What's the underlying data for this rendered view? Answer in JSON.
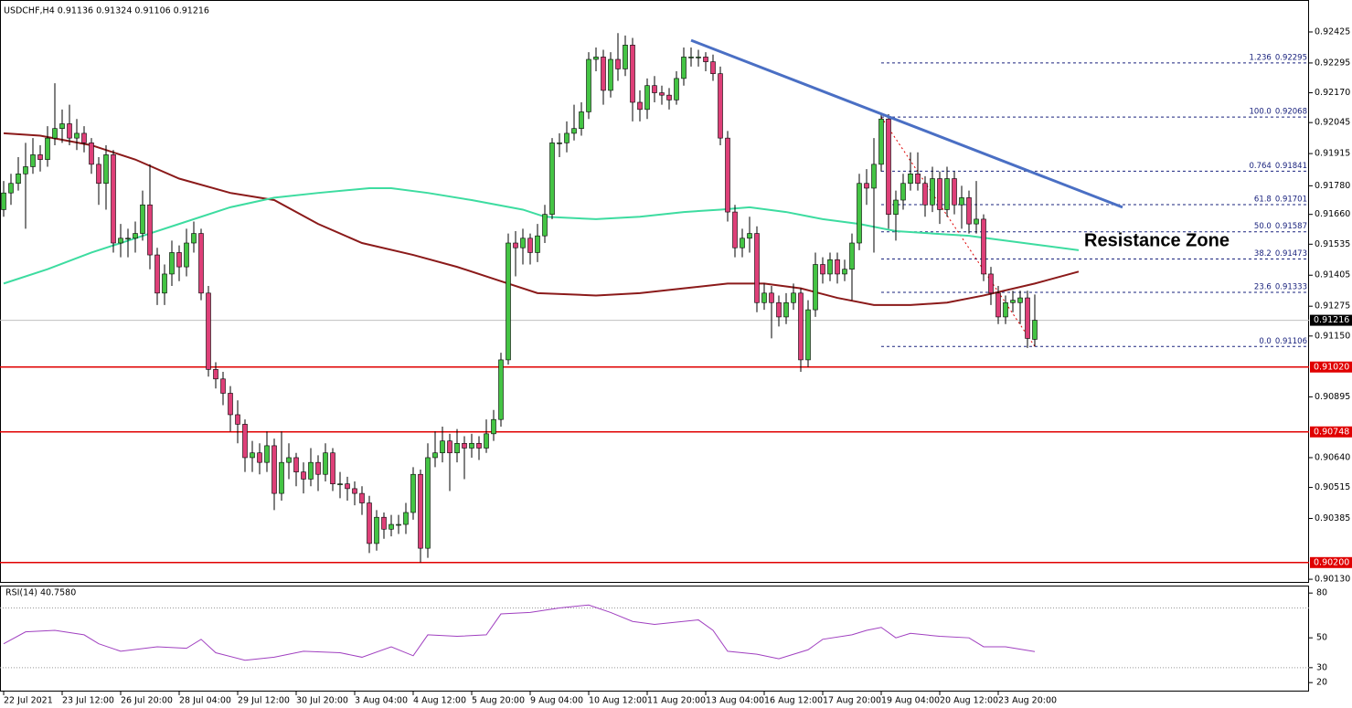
{
  "chart_data": {
    "type": "candlestick",
    "title": "USDCHF,H4  0.91136 0.91324 0.91106 0.91216",
    "up_color": "#44c444",
    "down_color": "#de3f78",
    "xlim": [
      -0.5,
      178.5
    ],
    "ylim": [
      0.90115,
      0.92559
    ],
    "yticks": [
      0.92425,
      0.92295,
      {
        "value": 0.9217,
        "label": "0.92170"
      },
      0.92045,
      0.91915,
      {
        "value": 0.9178,
        "label": "0.91780"
      },
      {
        "value": 0.9166,
        "label": "0.91660"
      },
      0.91535,
      0.91405,
      0.91275,
      {
        "value": 0.9115,
        "label": "0.91150"
      },
      0.90895,
      {
        "value": 0.9064,
        "label": "0.90640"
      },
      0.90515,
      0.90385,
      {
        "value": 0.9013,
        "label": "0.90130"
      }
    ],
    "xticks": [
      {
        "value": 0,
        "label": "22 Jul 2021"
      },
      {
        "value": 8,
        "label": "23 Jul 12:00"
      },
      {
        "value": 16,
        "label": "26 Jul 20:00"
      },
      {
        "value": 24,
        "label": "28 Jul 04:00"
      },
      {
        "value": 32,
        "label": "29 Jul 12:00"
      },
      {
        "value": 40,
        "label": "30 Jul 20:00"
      },
      {
        "value": 48,
        "label": "3 Aug 04:00"
      },
      {
        "value": 56,
        "label": "4 Aug 12:00"
      },
      {
        "value": 64,
        "label": "5 Aug 20:00"
      },
      {
        "value": 72,
        "label": "9 Aug 04:00"
      },
      {
        "value": 80,
        "label": "10 Aug 12:00"
      },
      {
        "value": 88,
        "label": "11 Aug 20:00"
      },
      {
        "value": 96,
        "label": "13 Aug 04:00"
      },
      {
        "value": 104,
        "label": "16 Aug 12:00"
      },
      {
        "value": 112,
        "label": "17 Aug 20:00"
      },
      {
        "value": 120,
        "label": "19 Aug 04:00"
      },
      {
        "value": 128,
        "label": "20 Aug 12:00"
      },
      {
        "value": 136,
        "label": "23 Aug 20:00"
      }
    ],
    "ohlc": [
      [
        0.9168,
        0.918,
        0.9165,
        0.9175
      ],
      [
        0.9175,
        0.9183,
        0.917,
        0.9179
      ],
      [
        0.9179,
        0.919,
        0.9176,
        0.9183
      ],
      [
        0.9183,
        0.9196,
        0.916,
        0.9186
      ],
      [
        0.9186,
        0.9198,
        0.9183,
        0.9191
      ],
      [
        0.9191,
        0.9195,
        0.9184,
        0.9189
      ],
      [
        0.9189,
        0.9203,
        0.9186,
        0.9198
      ],
      [
        0.9198,
        0.9221,
        0.9195,
        0.9202
      ],
      [
        0.9202,
        0.921,
        0.9196,
        0.9204
      ],
      [
        0.9204,
        0.9212,
        0.9195,
        0.9198
      ],
      [
        0.9198,
        0.9206,
        0.9193,
        0.92
      ],
      [
        0.92,
        0.9203,
        0.9192,
        0.9196
      ],
      [
        0.9196,
        0.9198,
        0.9183,
        0.9187
      ],
      [
        0.9187,
        0.919,
        0.917,
        0.9179
      ],
      [
        0.9179,
        0.9195,
        0.9168,
        0.9191
      ],
      [
        0.9191,
        0.9193,
        0.915,
        0.9154
      ],
      [
        0.9154,
        0.9162,
        0.9148,
        0.9156
      ],
      [
        0.9156,
        0.916,
        0.9148,
        0.9156
      ],
      [
        0.9156,
        0.9163,
        0.915,
        0.9158
      ],
      [
        0.9158,
        0.9176,
        0.9155,
        0.917
      ],
      [
        0.917,
        0.9187,
        0.9143,
        0.9149
      ],
      [
        0.9149,
        0.9152,
        0.9128,
        0.9133
      ],
      [
        0.9133,
        0.9145,
        0.9128,
        0.9141
      ],
      [
        0.9141,
        0.9155,
        0.9136,
        0.915
      ],
      [
        0.915,
        0.9153,
        0.9138,
        0.9144
      ],
      [
        0.9144,
        0.916,
        0.914,
        0.9154
      ],
      [
        0.9154,
        0.9163,
        0.915,
        0.9158
      ],
      [
        0.9158,
        0.916,
        0.913,
        0.9133
      ],
      [
        0.9133,
        0.9136,
        0.9098,
        0.9101
      ],
      [
        0.9101,
        0.9104,
        0.9093,
        0.9097
      ],
      [
        0.9097,
        0.91,
        0.9086,
        0.9091
      ],
      [
        0.9091,
        0.9094,
        0.9075,
        0.9082
      ],
      [
        0.9082,
        0.9088,
        0.907,
        0.9078
      ],
      [
        0.9078,
        0.908,
        0.9058,
        0.9064
      ],
      [
        0.9064,
        0.9071,
        0.9058,
        0.9066
      ],
      [
        0.9066,
        0.907,
        0.9057,
        0.9062
      ],
      [
        0.9062,
        0.9075,
        0.9058,
        0.9069
      ],
      [
        0.9069,
        0.9072,
        0.9042,
        0.9049
      ],
      [
        0.9049,
        0.9075,
        0.9046,
        0.9062
      ],
      [
        0.9062,
        0.907,
        0.9055,
        0.9064
      ],
      [
        0.9064,
        0.9066,
        0.9052,
        0.9058
      ],
      [
        0.9058,
        0.9062,
        0.9049,
        0.9055
      ],
      [
        0.9055,
        0.9068,
        0.9052,
        0.9062
      ],
      [
        0.9062,
        0.9065,
        0.905,
        0.9057
      ],
      [
        0.9057,
        0.907,
        0.9054,
        0.9066
      ],
      [
        0.9066,
        0.9068,
        0.905,
        0.9053
      ],
      [
        0.9053,
        0.9058,
        0.9047,
        0.9053
      ],
      [
        0.9053,
        0.9056,
        0.9046,
        0.9051
      ],
      [
        0.9051,
        0.9054,
        0.9044,
        0.9049
      ],
      [
        0.9049,
        0.9052,
        0.904,
        0.9045
      ],
      [
        0.9045,
        0.9048,
        0.9024,
        0.9028
      ],
      [
        0.9028,
        0.9042,
        0.9025,
        0.9039
      ],
      [
        0.9039,
        0.9041,
        0.903,
        0.9034
      ],
      [
        0.9034,
        0.904,
        0.9031,
        0.9036
      ],
      [
        0.9036,
        0.904,
        0.9032,
        0.9036
      ],
      [
        0.9036,
        0.9045,
        0.9032,
        0.9041
      ],
      [
        0.9041,
        0.906,
        0.9038,
        0.9057
      ],
      [
        0.9057,
        0.9059,
        0.902,
        0.9026
      ],
      [
        0.9026,
        0.907,
        0.9022,
        0.9064
      ],
      [
        0.9064,
        0.9075,
        0.906,
        0.9066
      ],
      [
        0.9066,
        0.9077,
        0.9062,
        0.9071
      ],
      [
        0.9071,
        0.9074,
        0.905,
        0.9066
      ],
      [
        0.9066,
        0.9076,
        0.9062,
        0.907
      ],
      [
        0.907,
        0.9073,
        0.9055,
        0.9068
      ],
      [
        0.9068,
        0.9074,
        0.9064,
        0.907
      ],
      [
        0.907,
        0.9073,
        0.9063,
        0.9068
      ],
      [
        0.9068,
        0.908,
        0.9066,
        0.9074
      ],
      [
        0.9074,
        0.9084,
        0.9071,
        0.908
      ],
      [
        0.908,
        0.9108,
        0.9077,
        0.9105
      ],
      [
        0.9105,
        0.9158,
        0.9103,
        0.9154
      ],
      [
        0.9154,
        0.9159,
        0.914,
        0.9152
      ],
      [
        0.9152,
        0.916,
        0.9145,
        0.9156
      ],
      [
        0.9156,
        0.9158,
        0.9145,
        0.915
      ],
      [
        0.915,
        0.9162,
        0.9146,
        0.9157
      ],
      [
        0.9157,
        0.917,
        0.9154,
        0.9166
      ],
      [
        0.9166,
        0.9198,
        0.9164,
        0.9196
      ],
      [
        0.9196,
        0.92,
        0.919,
        0.9196
      ],
      [
        0.9196,
        0.9205,
        0.9192,
        0.92
      ],
      [
        0.92,
        0.9212,
        0.9197,
        0.9202
      ],
      [
        0.9202,
        0.9213,
        0.9199,
        0.9209
      ],
      [
        0.9209,
        0.9234,
        0.9206,
        0.9231
      ],
      [
        0.9231,
        0.9236,
        0.9226,
        0.9232
      ],
      [
        0.9232,
        0.9235,
        0.9212,
        0.9218
      ],
      [
        0.9218,
        0.9234,
        0.9215,
        0.9231
      ],
      [
        0.9231,
        0.9242,
        0.9222,
        0.9227
      ],
      [
        0.9227,
        0.9241,
        0.9224,
        0.9237
      ],
      [
        0.9237,
        0.924,
        0.9205,
        0.9213
      ],
      [
        0.9213,
        0.9218,
        0.9205,
        0.921
      ],
      [
        0.921,
        0.9223,
        0.9206,
        0.922
      ],
      [
        0.922,
        0.9224,
        0.9213,
        0.9217
      ],
      [
        0.9217,
        0.922,
        0.9212,
        0.9216
      ],
      [
        0.9216,
        0.9219,
        0.921,
        0.9214
      ],
      [
        0.9214,
        0.9226,
        0.9212,
        0.9223
      ],
      [
        0.9223,
        0.9236,
        0.922,
        0.9232
      ],
      [
        0.9232,
        0.9236,
        0.9228,
        0.9232
      ],
      [
        0.9232,
        0.9235,
        0.9228,
        0.9232
      ],
      [
        0.9232,
        0.9234,
        0.9226,
        0.923
      ],
      [
        0.923,
        0.9233,
        0.9222,
        0.9225
      ],
      [
        0.9225,
        0.9228,
        0.9195,
        0.9198
      ],
      [
        0.9198,
        0.9201,
        0.9163,
        0.9167
      ],
      [
        0.9167,
        0.917,
        0.9148,
        0.9152
      ],
      [
        0.9152,
        0.916,
        0.9148,
        0.9156
      ],
      [
        0.9156,
        0.9165,
        0.915,
        0.9158
      ],
      [
        0.9158,
        0.9161,
        0.9125,
        0.9129
      ],
      [
        0.9129,
        0.9137,
        0.9126,
        0.9133
      ],
      [
        0.9133,
        0.9136,
        0.9114,
        0.9129
      ],
      [
        0.9129,
        0.9132,
        0.9119,
        0.9123
      ],
      [
        0.9123,
        0.9133,
        0.912,
        0.9129
      ],
      [
        0.9129,
        0.9137,
        0.9126,
        0.9133
      ],
      [
        0.9133,
        0.9135,
        0.91,
        0.9105
      ],
      [
        0.9105,
        0.913,
        0.9102,
        0.9126
      ],
      [
        0.9126,
        0.915,
        0.9123,
        0.9145
      ],
      [
        0.9145,
        0.9148,
        0.9137,
        0.9141
      ],
      [
        0.9141,
        0.915,
        0.9138,
        0.9147
      ],
      [
        0.9147,
        0.915,
        0.9137,
        0.9141
      ],
      [
        0.9141,
        0.9147,
        0.9138,
        0.9143
      ],
      [
        0.9143,
        0.9158,
        0.913,
        0.9154
      ],
      [
        0.9154,
        0.9183,
        0.9151,
        0.9179
      ],
      [
        0.9179,
        0.9185,
        0.917,
        0.9177
      ],
      [
        0.9177,
        0.9198,
        0.915,
        0.9187
      ],
      [
        0.9187,
        0.9208,
        0.9184,
        0.9206
      ],
      [
        0.9206,
        0.9208,
        0.916,
        0.9166
      ],
      [
        0.9166,
        0.9176,
        0.9155,
        0.9172
      ],
      [
        0.9172,
        0.9183,
        0.9168,
        0.9179
      ],
      [
        0.9179,
        0.9192,
        0.9176,
        0.9183
      ],
      [
        0.9183,
        0.9192,
        0.9176,
        0.9179
      ],
      [
        0.9179,
        0.9182,
        0.9165,
        0.917
      ],
      [
        0.917,
        0.9186,
        0.9167,
        0.9181
      ],
      [
        0.9181,
        0.9184,
        0.9162,
        0.9168
      ],
      [
        0.9168,
        0.9186,
        0.9165,
        0.9181
      ],
      [
        0.9181,
        0.9184,
        0.9166,
        0.917
      ],
      [
        0.917,
        0.9178,
        0.916,
        0.9173
      ],
      [
        0.9173,
        0.9176,
        0.9158,
        0.9162
      ],
      [
        0.9162,
        0.918,
        0.9158,
        0.9164
      ],
      [
        0.9164,
        0.9166,
        0.9138,
        0.9141
      ],
      [
        0.9141,
        0.9144,
        0.9128,
        0.9133
      ],
      [
        0.9133,
        0.9136,
        0.912,
        0.9123
      ],
      [
        0.9123,
        0.9132,
        0.912,
        0.9129
      ],
      [
        0.9129,
        0.9134,
        0.9125,
        0.913
      ],
      [
        0.9129,
        0.9134,
        0.912,
        0.9131
      ],
      [
        0.9131,
        0.9134,
        0.911,
        0.9114
      ],
      [
        0.91136,
        0.91324,
        0.91106,
        0.91216
      ]
    ],
    "lines": [
      {
        "color": "#8b1a1a",
        "x": [
          0,
          5,
          12,
          18,
          24,
          31,
          37,
          43,
          49,
          56,
          62,
          68,
          73,
          81,
          87,
          93,
          99,
          104,
          109,
          114,
          119,
          124,
          129,
          134,
          141,
          147
        ],
        "values": [
          0.92,
          0.9199,
          0.9195,
          0.9189,
          0.9181,
          0.9175,
          0.9172,
          0.9162,
          0.9154,
          0.9149,
          0.9144,
          0.9138,
          0.9133,
          0.9132,
          0.9133,
          0.9135,
          0.9137,
          0.9137,
          0.9135,
          0.9131,
          0.9128,
          0.9128,
          0.9129,
          0.9132,
          0.9137,
          0.9142
        ]
      },
      {
        "color": "#3ddca0",
        "x": [
          0,
          6,
          12,
          18,
          24,
          31,
          37,
          43,
          50,
          53,
          58,
          64,
          71,
          74,
          81,
          87,
          93,
          98,
          102,
          107,
          112,
          117,
          122,
          127,
          132,
          137,
          142,
          147
        ],
        "values": [
          0.9137,
          0.9143,
          0.915,
          0.9156,
          0.9162,
          0.9169,
          0.9173,
          0.9175,
          0.9177,
          0.9177,
          0.9175,
          0.9172,
          0.9168,
          0.9165,
          0.9164,
          0.9165,
          0.9167,
          0.9168,
          0.9169,
          0.9167,
          0.9164,
          0.9162,
          0.9159,
          0.9158,
          0.9157,
          0.9155,
          0.9153,
          0.9151
        ]
      }
    ],
    "trendline": {
      "color": "#4a6fc4",
      "x": [
        94,
        153
      ],
      "values": [
        0.9239,
        0.9169
      ]
    },
    "levels": {
      "color": "#e00000",
      "values": [
        {
          "value": 0.9102,
          "label": "0.91020"
        },
        0.90748,
        {
          "value": 0.902,
          "label": "0.90200"
        }
      ]
    },
    "current": 0.91216,
    "fib": {
      "color": "#1a237e",
      "x": [
        120,
        141
      ],
      "levels": [
        {
          "ratio": "1.236",
          "value": 0.92295
        },
        {
          "ratio": "100.0",
          "value": 0.92068
        },
        {
          "ratio": "0.764",
          "value": 0.91841
        },
        {
          "ratio": "61.8",
          "value": 0.91701
        },
        {
          "ratio": "50.0",
          "value": 0.91587
        },
        {
          "ratio": "38.2",
          "value": 0.91473
        },
        {
          "ratio": "23.6",
          "value": 0.91333
        },
        {
          "ratio": "0.0",
          "value": 0.91106
        }
      ]
    },
    "annotation": {
      "text": "Resistance Zone",
      "color": "#d0021b"
    },
    "rsi": {
      "type": "line",
      "title": "RSI(14) 40.7580",
      "color": "#a040c0",
      "ylim": [
        14,
        85
      ],
      "yticks": [
        80,
        50,
        30,
        20
      ],
      "levels": [
        70,
        30
      ],
      "x": [
        0,
        3,
        7,
        11,
        13,
        16,
        21,
        25,
        27,
        29,
        33,
        37,
        41,
        46,
        49,
        53,
        56,
        58,
        62,
        66,
        68,
        72,
        76,
        80,
        83,
        86,
        89,
        95,
        97,
        99,
        103,
        106,
        110,
        112,
        116,
        118,
        120,
        122,
        124,
        128,
        132,
        134,
        137,
        141
      ],
      "values": [
        46,
        54,
        55,
        52,
        46,
        41,
        44,
        43,
        49,
        40,
        35,
        37,
        41,
        40,
        37,
        44,
        38,
        52,
        51,
        52,
        66,
        67,
        70,
        72,
        67,
        61,
        59,
        62,
        55,
        41,
        39,
        36,
        42,
        49,
        52,
        55,
        57,
        50,
        53,
        51,
        50,
        44,
        44,
        40.758
      ]
    }
  }
}
